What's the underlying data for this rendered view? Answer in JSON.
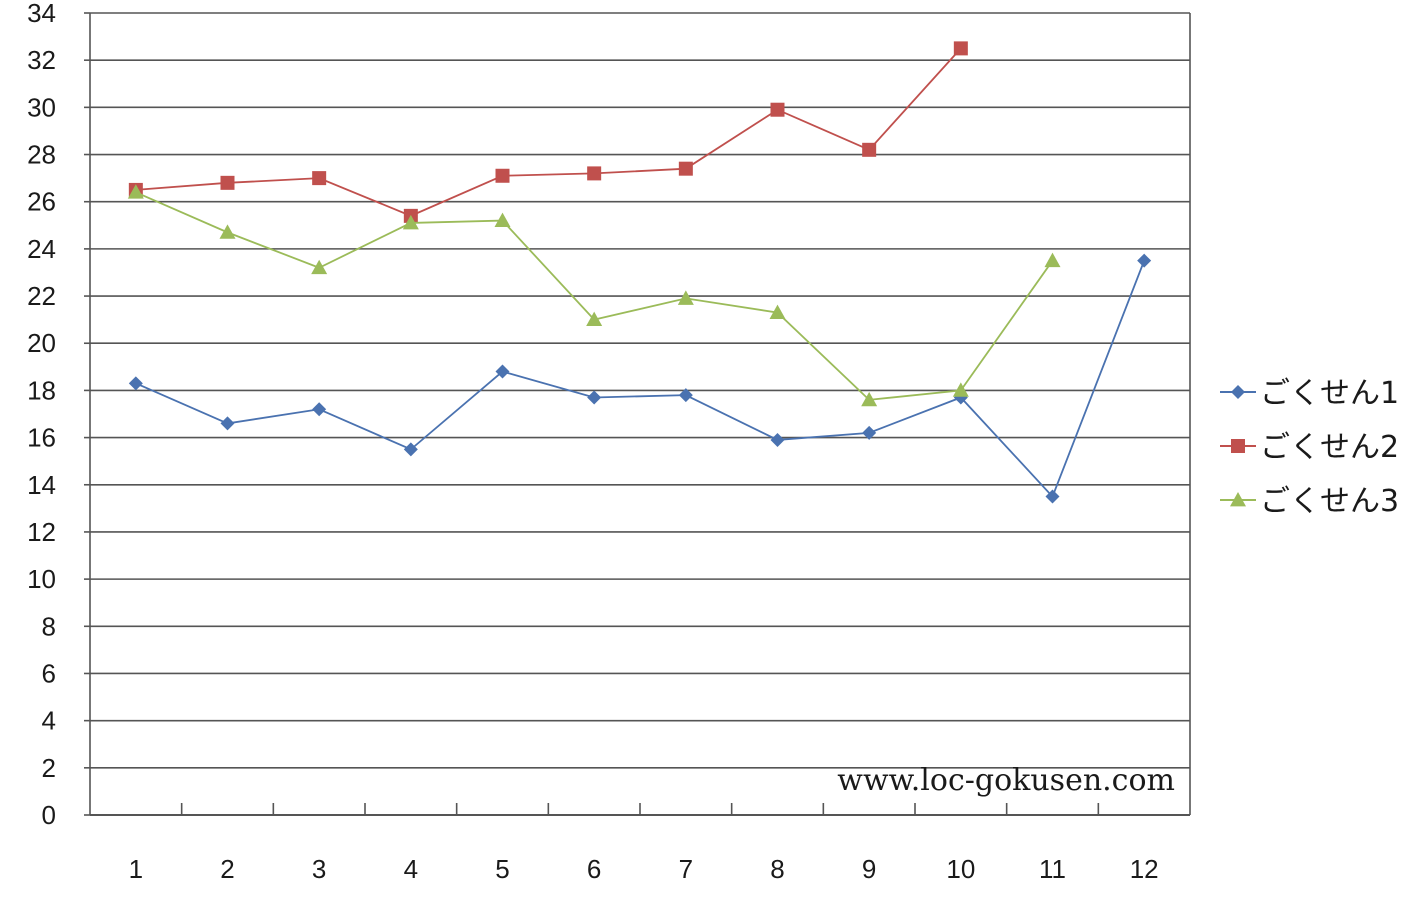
{
  "chart_data": {
    "type": "line",
    "title": "",
    "xlabel": "",
    "ylabel": "",
    "x": [
      "1",
      "2",
      "3",
      "4",
      "5",
      "6",
      "7",
      "8",
      "9",
      "10",
      "11",
      "12"
    ],
    "ylim": [
      0,
      34
    ],
    "y_ticks": [
      "0",
      "2",
      "4",
      "6",
      "8",
      "10",
      "12",
      "14",
      "16",
      "18",
      "20",
      "22",
      "24",
      "26",
      "28",
      "30",
      "32",
      "34"
    ],
    "grid": true,
    "legend_position": "right",
    "series": [
      {
        "name": "ごくせん1",
        "color": "#4a72b0",
        "marker": "diamond",
        "values": [
          18.3,
          16.6,
          17.2,
          15.5,
          18.8,
          17.7,
          17.8,
          15.9,
          16.2,
          17.7,
          13.5,
          23.5
        ]
      },
      {
        "name": "ごくせん2",
        "color": "#c0504d",
        "marker": "square",
        "values": [
          26.5,
          26.8,
          27.0,
          25.4,
          27.1,
          27.2,
          27.4,
          29.9,
          28.2,
          32.5,
          null,
          null
        ]
      },
      {
        "name": "ごくせん3",
        "color": "#9bbb59",
        "marker": "triangle",
        "values": [
          26.4,
          24.7,
          23.2,
          25.1,
          25.2,
          21.0,
          21.9,
          21.3,
          17.6,
          18.0,
          23.5,
          null
        ]
      }
    ],
    "annotation": "www.loc-gokusen.com"
  }
}
